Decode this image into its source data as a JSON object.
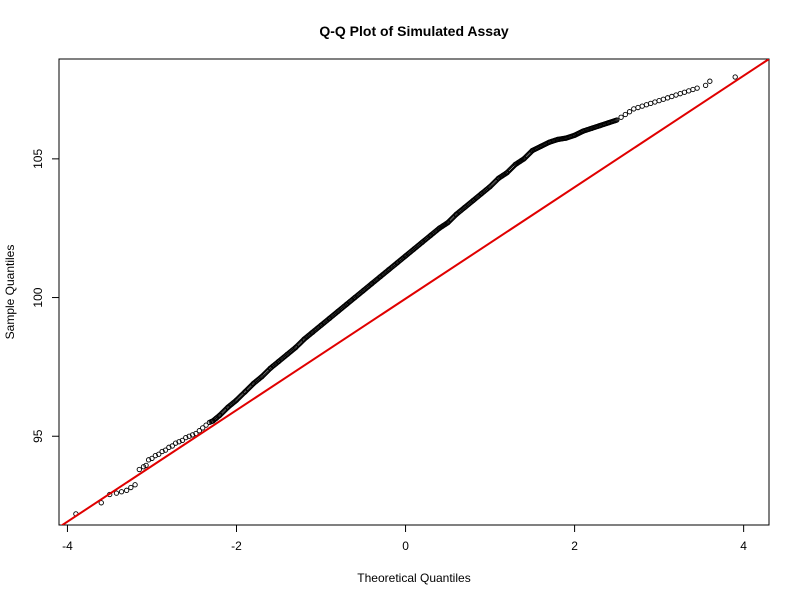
{
  "chart_data": {
    "type": "scatter",
    "title": "Q-Q Plot of Simulated Assay",
    "xlabel": "Theoretical Quantiles",
    "ylabel": "Sample Quantiles",
    "xlim": [
      -4.1,
      4.3
    ],
    "ylim": [
      91.8,
      108.6
    ],
    "xticks": [
      -4,
      -2,
      0,
      2,
      4
    ],
    "yticks": [
      95,
      100,
      105
    ],
    "grid": false,
    "colors": {
      "points": "#000000",
      "line": "#e00000",
      "frame": "#000000"
    },
    "series": [
      {
        "type": "scatter",
        "marker": "open-circle",
        "x": [
          -3.9,
          -3.6,
          -3.5,
          -3.42,
          -3.36,
          -3.3,
          -3.25,
          -3.2,
          -3.15,
          -3.1,
          -3.07,
          -3.04,
          -3.0,
          -2.96,
          -2.92,
          -2.88,
          -2.84,
          -2.8,
          -2.76,
          -2.72,
          -2.68,
          -2.64,
          -2.6,
          -2.56,
          -2.52,
          -2.48,
          -2.44,
          -2.4,
          -2.36,
          -2.32,
          -2.28,
          -2.24,
          -2.2,
          -2.1,
          -2.0,
          -1.9,
          -1.8,
          -1.7,
          -1.6,
          -1.5,
          -1.4,
          -1.3,
          -1.2,
          -1.1,
          -1.0,
          -0.9,
          -0.8,
          -0.7,
          -0.6,
          -0.5,
          -0.4,
          -0.3,
          -0.2,
          -0.1,
          0.0,
          0.1,
          0.2,
          0.3,
          0.4,
          0.5,
          0.6,
          0.7,
          0.8,
          0.9,
          1.0,
          1.1,
          1.2,
          1.3,
          1.4,
          1.5,
          1.6,
          1.7,
          1.8,
          1.9,
          2.0,
          2.1,
          2.2,
          2.3,
          2.4,
          2.5,
          2.55,
          2.6,
          2.65,
          2.7,
          2.75,
          2.8,
          2.85,
          2.9,
          2.95,
          3.0,
          3.05,
          3.1,
          3.15,
          3.2,
          3.25,
          3.3,
          3.35,
          3.4,
          3.45,
          3.55,
          3.6,
          3.9
        ],
        "y": [
          92.2,
          92.6,
          92.9,
          92.95,
          93.0,
          93.05,
          93.15,
          93.25,
          93.8,
          93.9,
          93.95,
          94.15,
          94.2,
          94.3,
          94.35,
          94.45,
          94.5,
          94.6,
          94.65,
          94.75,
          94.8,
          94.85,
          94.95,
          95.0,
          95.05,
          95.1,
          95.2,
          95.3,
          95.4,
          95.5,
          95.55,
          95.65,
          95.75,
          96.05,
          96.3,
          96.6,
          96.9,
          97.15,
          97.45,
          97.7,
          97.95,
          98.2,
          98.5,
          98.75,
          99.0,
          99.25,
          99.5,
          99.75,
          100.0,
          100.25,
          100.5,
          100.75,
          101.0,
          101.25,
          101.5,
          101.75,
          102.0,
          102.25,
          102.5,
          102.7,
          103.0,
          103.25,
          103.5,
          103.75,
          104.0,
          104.3,
          104.5,
          104.8,
          105.0,
          105.3,
          105.45,
          105.6,
          105.7,
          105.75,
          105.85,
          106.0,
          106.1,
          106.2,
          106.3,
          106.4,
          106.5,
          106.6,
          106.7,
          106.8,
          106.85,
          106.9,
          106.95,
          107.0,
          107.05,
          107.1,
          107.15,
          107.2,
          107.25,
          107.3,
          107.35,
          107.4,
          107.45,
          107.5,
          107.55,
          107.65,
          107.8,
          107.95
        ]
      },
      {
        "type": "line",
        "role": "reference",
        "x": [
          -4.1,
          4.3
        ],
        "y": [
          91.72,
          108.6
        ]
      }
    ]
  }
}
